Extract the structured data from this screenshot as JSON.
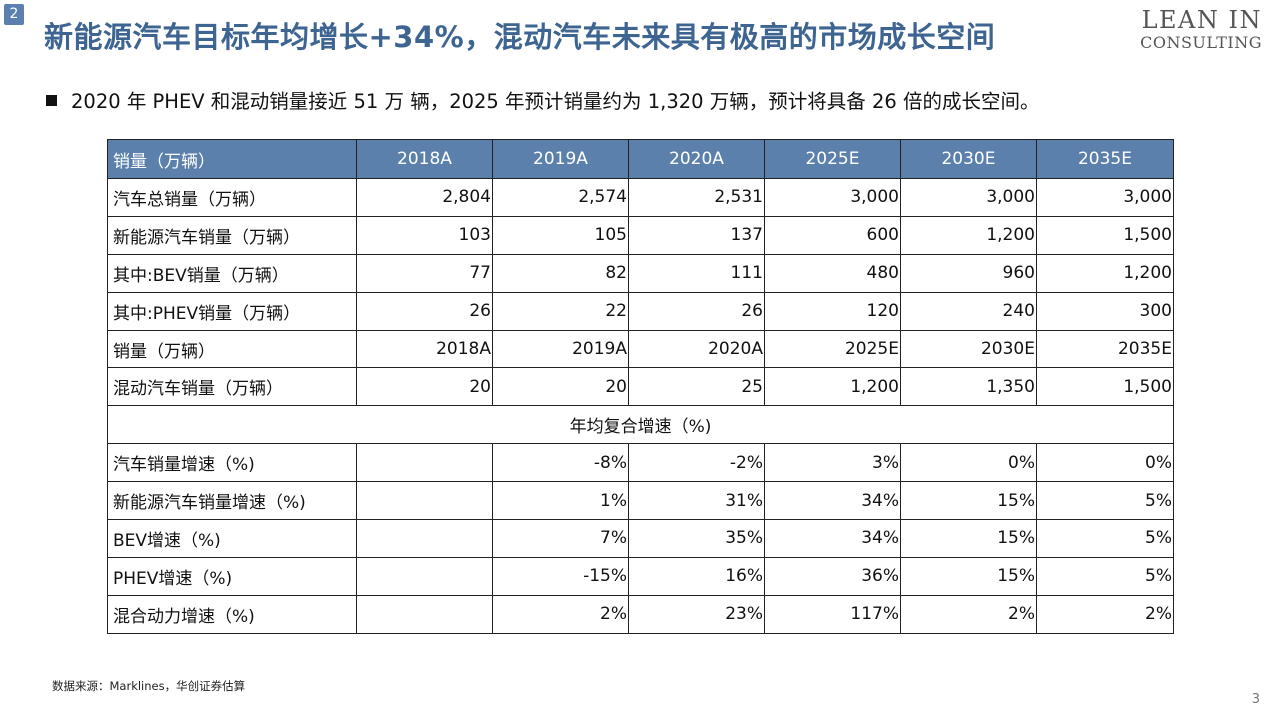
{
  "slide": {
    "badge": "2",
    "title": "新能源汽车目标年均增长+34%，混动汽车未来具有极高的市场成长空间",
    "logo_line1": "LEAN IN",
    "logo_line2": "CONSULTING",
    "summary": "2020 年 PHEV 和混动销量接近 51 万 辆，2025 年预计销量约为 1,320 万辆，预计将具备 26 倍的成长空间。",
    "source": "数据来源：Marklines，华创证券估算",
    "page_number": "3"
  },
  "table": {
    "header": [
      "销量（万辆）",
      "2018A",
      "2019A",
      "2020A",
      "2025E",
      "2030E",
      "2035E"
    ],
    "rows": [
      [
        "汽车总销量（万辆）",
        "2,804",
        "2,574",
        "2,531",
        "3,000",
        "3,000",
        "3,000"
      ],
      [
        "新能源汽车销量（万辆）",
        "103",
        "105",
        "137",
        "600",
        "1,200",
        "1,500"
      ],
      [
        "其中:BEV销量（万辆）",
        "77",
        "82",
        "111",
        "480",
        "960",
        "1,200"
      ],
      [
        "其中:PHEV销量（万辆）",
        "26",
        "22",
        "26",
        "120",
        "240",
        "300"
      ],
      [
        "销量（万辆）",
        "2018A",
        "2019A",
        "2020A",
        "2025E",
        "2030E",
        "2035E"
      ],
      [
        "混动汽车销量（万辆）",
        "20",
        "20",
        "25",
        "1,200",
        "1,350",
        "1,500"
      ]
    ],
    "section_label": "年均复合增速（%)",
    "growth_rows": [
      [
        "汽车销量增速（%)",
        "",
        "-8%",
        "-2%",
        "3%",
        "0%",
        "0%"
      ],
      [
        "新能源汽车销量增速（%)",
        "",
        "1%",
        "31%",
        "34%",
        "15%",
        "5%"
      ],
      [
        "BEV增速（%)",
        "",
        "7%",
        "35%",
        "34%",
        "15%",
        "5%"
      ],
      [
        "PHEV增速（%)",
        "",
        "-15%",
        "16%",
        "36%",
        "15%",
        "5%"
      ],
      [
        "混合动力增速（%)",
        "",
        "2%",
        "23%",
        "117%",
        "2%",
        "2%"
      ]
    ]
  }
}
